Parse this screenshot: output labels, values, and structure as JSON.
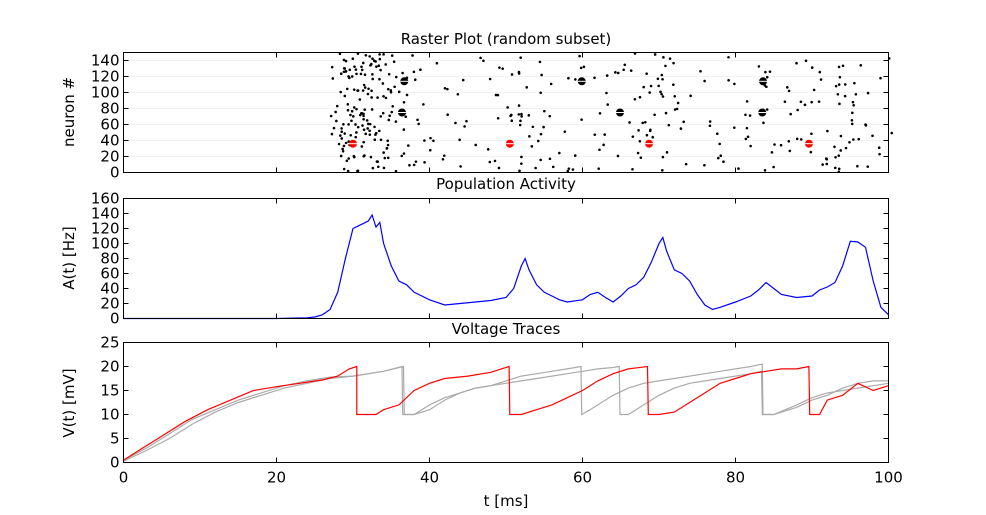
{
  "chart_data": [
    {
      "type": "scatter",
      "title": "Raster Plot (random subset)",
      "xlabel": "",
      "ylabel": "neuron #",
      "xlim": [
        0,
        100
      ],
      "ylim": [
        0,
        150
      ],
      "yticks": [
        0,
        20,
        40,
        60,
        80,
        100,
        120,
        140
      ],
      "grid": false,
      "spike_dots_note_free": true,
      "spike_columns": [
        {
          "x": 28.0,
          "n": 18
        },
        {
          "x": 29.0,
          "n": 20
        },
        {
          "x": 30.0,
          "n": 22
        },
        {
          "x": 31.0,
          "n": 24
        },
        {
          "x": 32.0,
          "n": 22
        },
        {
          "x": 33.0,
          "n": 20
        },
        {
          "x": 34.0,
          "n": 16
        },
        {
          "x": 35.0,
          "n": 14
        },
        {
          "x": 36.0,
          "n": 12
        },
        {
          "x": 37.5,
          "n": 8
        },
        {
          "x": 39.0,
          "n": 6
        },
        {
          "x": 41.0,
          "n": 5
        },
        {
          "x": 43.0,
          "n": 6
        },
        {
          "x": 45.0,
          "n": 5
        },
        {
          "x": 47.0,
          "n": 6
        },
        {
          "x": 49.0,
          "n": 7
        },
        {
          "x": 51.0,
          "n": 10
        },
        {
          "x": 52.5,
          "n": 12
        },
        {
          "x": 54.0,
          "n": 8
        },
        {
          "x": 56.0,
          "n": 6
        },
        {
          "x": 58.0,
          "n": 5
        },
        {
          "x": 60.0,
          "n": 6
        },
        {
          "x": 62.0,
          "n": 7
        },
        {
          "x": 64.0,
          "n": 6
        },
        {
          "x": 66.0,
          "n": 8
        },
        {
          "x": 68.0,
          "n": 12
        },
        {
          "x": 69.5,
          "n": 14
        },
        {
          "x": 71.0,
          "n": 10
        },
        {
          "x": 73.0,
          "n": 6
        },
        {
          "x": 75.0,
          "n": 4
        },
        {
          "x": 77.0,
          "n": 5
        },
        {
          "x": 79.0,
          "n": 6
        },
        {
          "x": 81.0,
          "n": 7
        },
        {
          "x": 83.0,
          "n": 8
        },
        {
          "x": 85.0,
          "n": 6
        },
        {
          "x": 87.0,
          "n": 7
        },
        {
          "x": 89.0,
          "n": 8
        },
        {
          "x": 91.0,
          "n": 9
        },
        {
          "x": 93.0,
          "n": 12
        },
        {
          "x": 94.5,
          "n": 13
        },
        {
          "x": 96.0,
          "n": 10
        },
        {
          "x": 98.0,
          "n": 5
        },
        {
          "x": 99.5,
          "n": 3
        }
      ],
      "marked_spikes": [
        {
          "x": 30.0,
          "y": 36,
          "color": "#ff0000"
        },
        {
          "x": 50.5,
          "y": 36,
          "color": "#ff0000"
        },
        {
          "x": 68.7,
          "y": 36,
          "color": "#ff0000"
        },
        {
          "x": 89.6,
          "y": 36,
          "color": "#ff0000"
        },
        {
          "x": 36.7,
          "y": 114,
          "color": "#000000"
        },
        {
          "x": 36.4,
          "y": 75,
          "color": "#000000"
        },
        {
          "x": 59.9,
          "y": 114,
          "color": "#000000"
        },
        {
          "x": 64.9,
          "y": 75,
          "color": "#000000"
        },
        {
          "x": 83.6,
          "y": 114,
          "color": "#000000"
        },
        {
          "x": 83.5,
          "y": 75,
          "color": "#000000"
        }
      ]
    },
    {
      "type": "line",
      "title": "Population Activity",
      "xlabel": "",
      "ylabel": "A(t) [Hz]",
      "xlim": [
        0,
        100
      ],
      "ylim": [
        0,
        160
      ],
      "yticks": [
        0,
        20,
        40,
        60,
        80,
        100,
        120,
        140,
        160
      ],
      "grid": false,
      "series": [
        {
          "color": "#0000ff",
          "x": [
            0,
            20,
            24,
            25,
            26,
            27,
            28,
            29,
            30,
            31,
            32,
            32.5,
            33,
            33.5,
            34,
            35,
            36,
            37,
            38,
            39,
            40,
            42,
            44,
            46,
            48,
            50,
            51,
            52,
            52.5,
            53,
            54,
            55,
            56,
            57,
            58,
            60,
            61,
            62,
            63,
            64,
            65,
            66,
            67,
            68,
            69,
            70,
            70.5,
            71,
            72,
            73,
            74,
            75,
            76,
            77,
            78,
            80,
            82,
            83,
            84,
            85,
            86,
            88,
            90,
            91,
            92,
            93,
            94,
            95,
            96,
            97,
            98,
            99,
            100
          ],
          "y": [
            0,
            0,
            1,
            2,
            5,
            12,
            35,
            80,
            120,
            125,
            130,
            138,
            122,
            128,
            100,
            70,
            50,
            45,
            35,
            30,
            25,
            18,
            20,
            22,
            24,
            28,
            40,
            70,
            80,
            65,
            45,
            35,
            30,
            25,
            22,
            25,
            32,
            35,
            28,
            22,
            30,
            40,
            45,
            55,
            75,
            100,
            108,
            90,
            65,
            60,
            50,
            32,
            18,
            12,
            15,
            22,
            30,
            38,
            48,
            40,
            32,
            28,
            30,
            38,
            42,
            48,
            70,
            103,
            102,
            95,
            50,
            15,
            5
          ]
        }
      ]
    },
    {
      "type": "line",
      "title": "Voltage Traces",
      "xlabel": "t [ms]",
      "ylabel": "V(t) [mV]",
      "xlim": [
        0,
        100
      ],
      "ylim": [
        0,
        25
      ],
      "yticks": [
        0,
        5,
        10,
        15,
        20,
        25
      ],
      "xticks": [
        0,
        20,
        40,
        60,
        80,
        100
      ],
      "grid": false,
      "series": [
        {
          "color": "#ff0000",
          "x": [
            0,
            2,
            5,
            8,
            11,
            14,
            17,
            20,
            23,
            26,
            28,
            29.5,
            30.5,
            30.5,
            33,
            34,
            36,
            38,
            40,
            42,
            45,
            48,
            50.4,
            50.5,
            52,
            54,
            56,
            58,
            60,
            62,
            64,
            66,
            68.5,
            68.6,
            70,
            72,
            74,
            76,
            78,
            80,
            82,
            84,
            86,
            88,
            89.6,
            89.7,
            91,
            92,
            94,
            96,
            98,
            100
          ],
          "y": [
            0.5,
            2.5,
            5.5,
            8.5,
            11,
            13,
            15,
            15.8,
            16.5,
            17.2,
            18,
            19.5,
            20,
            10,
            10,
            11,
            12,
            15,
            16.5,
            17.5,
            18,
            18.8,
            20,
            10,
            10,
            11,
            12,
            13.5,
            15,
            17,
            18.5,
            19.5,
            20,
            10,
            10,
            10.5,
            12.5,
            14.5,
            16.5,
            17.5,
            18.5,
            19,
            19.5,
            19.5,
            20,
            10,
            10,
            13,
            14,
            16.5,
            15,
            16
          ]
        },
        {
          "color": "#aaaaaa",
          "x": [
            0,
            3,
            6,
            9,
            12,
            15,
            18,
            21,
            24,
            27,
            30,
            32,
            34,
            36.4,
            36.5,
            38,
            40,
            42,
            44,
            46,
            48,
            50,
            52,
            54,
            56,
            58,
            59.8,
            59.9,
            61,
            62,
            64,
            66,
            68,
            70,
            72,
            74,
            76,
            78,
            80,
            82,
            83.5,
            83.6,
            85,
            88,
            90,
            92,
            94,
            96,
            98,
            100
          ],
          "y": [
            0.5,
            3,
            6,
            9,
            11,
            13,
            14.5,
            16,
            17,
            17.8,
            18,
            18.5,
            19,
            20,
            10,
            10,
            12,
            13.5,
            14.5,
            15.5,
            16,
            17,
            18,
            18.5,
            19,
            19.5,
            20,
            10,
            11,
            12,
            14,
            15.5,
            16.5,
            17,
            17.5,
            18,
            18.5,
            19,
            19.5,
            20,
            20.5,
            10,
            10,
            11.5,
            13,
            14,
            15.5,
            16.5,
            17,
            17
          ]
        },
        {
          "color": "#aaaaaa",
          "x": [
            0,
            3,
            6,
            9,
            12,
            15,
            18,
            21,
            24,
            27,
            30,
            32,
            34,
            36.6,
            36.7,
            38,
            40,
            42,
            44,
            46,
            48,
            50,
            52,
            54,
            56,
            58,
            60,
            62,
            64,
            64.8,
            64.9,
            66,
            68,
            70,
            72,
            74,
            76,
            78,
            80,
            82,
            83.4,
            83.5,
            85,
            88,
            90,
            92,
            94,
            96,
            98,
            100
          ],
          "y": [
            0.3,
            2.5,
            5,
            8,
            10.5,
            12.5,
            14,
            15.5,
            16.5,
            17.5,
            18,
            18.5,
            19,
            20,
            10,
            10,
            11,
            13,
            14.5,
            15.5,
            16,
            16.5,
            17,
            17.5,
            18,
            18.5,
            19,
            19.5,
            19.8,
            20,
            10,
            10,
            12,
            14,
            15.5,
            16.5,
            17,
            17.5,
            18,
            18.5,
            19,
            10,
            10,
            12,
            13.5,
            14.5,
            15,
            15.5,
            16,
            16.5
          ]
        }
      ]
    }
  ]
}
